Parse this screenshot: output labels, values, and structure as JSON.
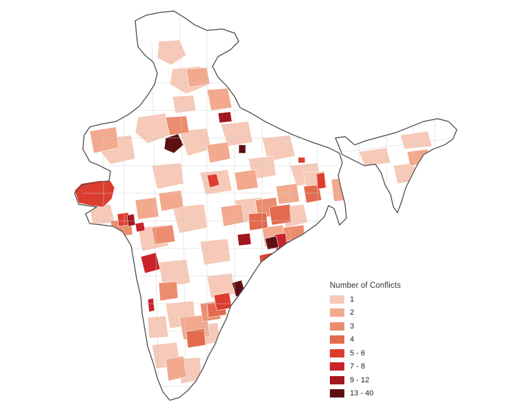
{
  "legend": {
    "title": "Number of Conflicts",
    "items": [
      {
        "label": "1",
        "color": "#f6c9b8"
      },
      {
        "label": "2",
        "color": "#f2a98e"
      },
      {
        "label": "3",
        "color": "#ec8d6f"
      },
      {
        "label": "4",
        "color": "#e46a4e"
      },
      {
        "label": "5 - 6",
        "color": "#dc3d2e"
      },
      {
        "label": "7 - 8",
        "color": "#c9222a"
      },
      {
        "label": "9 - 12",
        "color": "#a3171e"
      },
      {
        "label": "13 - 40",
        "color": "#5e0f12"
      }
    ]
  },
  "colors": {
    "background": "#ffffff",
    "boundary": "#555555",
    "district_line": "#cfcfcf",
    "unshaded": "#ffffff"
  }
}
